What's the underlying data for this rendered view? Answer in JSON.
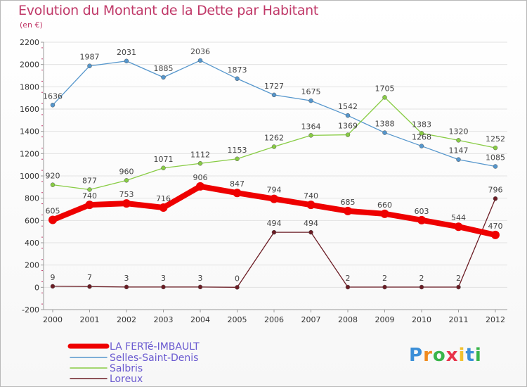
{
  "chart_data": {
    "type": "line",
    "title": "Evolution du Montant de la Dette par Habitant",
    "subtitle": "(en €)",
    "x": [
      "2000",
      "2001",
      "2002",
      "2003",
      "2004",
      "2005",
      "2006",
      "2007",
      "2008",
      "2009",
      "2010",
      "2011",
      "2012"
    ],
    "ylim": [
      -200,
      2200
    ],
    "yticks": [
      -200,
      0,
      200,
      400,
      600,
      800,
      1000,
      1200,
      1400,
      1600,
      1800,
      2000,
      2200
    ],
    "grid": true,
    "legend_position": "bottom-left",
    "series": [
      {
        "name": "LA FERTé-IMBAULT",
        "color": "#ee0000",
        "values": [
          605,
          740,
          753,
          716,
          906,
          847,
          794,
          740,
          685,
          660,
          603,
          544,
          470
        ]
      },
      {
        "name": "Selles-Saint-Denis",
        "color": "#5596cc",
        "values": [
          1636,
          1987,
          2031,
          1885,
          2036,
          1873,
          1727,
          1675,
          1542,
          1388,
          1268,
          1147,
          1085
        ]
      },
      {
        "name": "Salbris",
        "color": "#88cc44",
        "values": [
          920,
          877,
          960,
          1071,
          1112,
          1153,
          1262,
          1364,
          1369,
          1705,
          1383,
          1320,
          1252
        ]
      },
      {
        "name": "Loreux",
        "color": "#6b1c24",
        "values": [
          9,
          7,
          3,
          3,
          3,
          0,
          494,
          494,
          2,
          2,
          2,
          2,
          796
        ]
      }
    ]
  },
  "logo": {
    "text": "Proxiti"
  }
}
